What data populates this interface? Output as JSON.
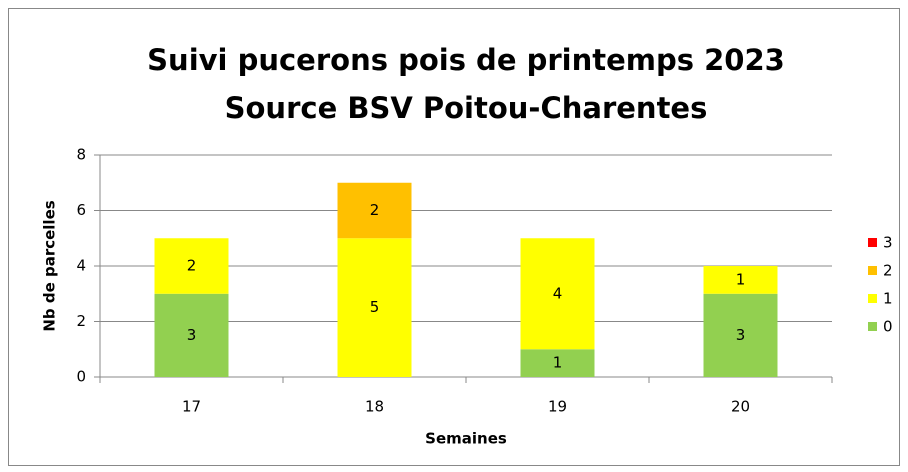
{
  "chart_data": {
    "type": "stacked_bar",
    "title": "Suivi pucerons pois de printemps 2023",
    "subtitle": "Source BSV Poitou-Charentes",
    "x_label": "Semaines",
    "y_label": "Nb de parcelles",
    "categories": [
      "17",
      "18",
      "19",
      "20"
    ],
    "series": [
      {
        "name": "0",
        "color": "#92d050",
        "values": [
          3,
          0,
          1,
          3
        ]
      },
      {
        "name": "1",
        "color": "#ffff00",
        "values": [
          2,
          5,
          4,
          1
        ]
      },
      {
        "name": "2",
        "color": "#ffc000",
        "values": [
          0,
          2,
          0,
          0
        ]
      },
      {
        "name": "3",
        "color": "#ff0000",
        "values": [
          0,
          0,
          0,
          0
        ]
      }
    ],
    "ylim": [
      0,
      8
    ],
    "yticks": [
      0,
      2,
      4,
      6,
      8
    ],
    "grid": true,
    "legend": "right"
  }
}
